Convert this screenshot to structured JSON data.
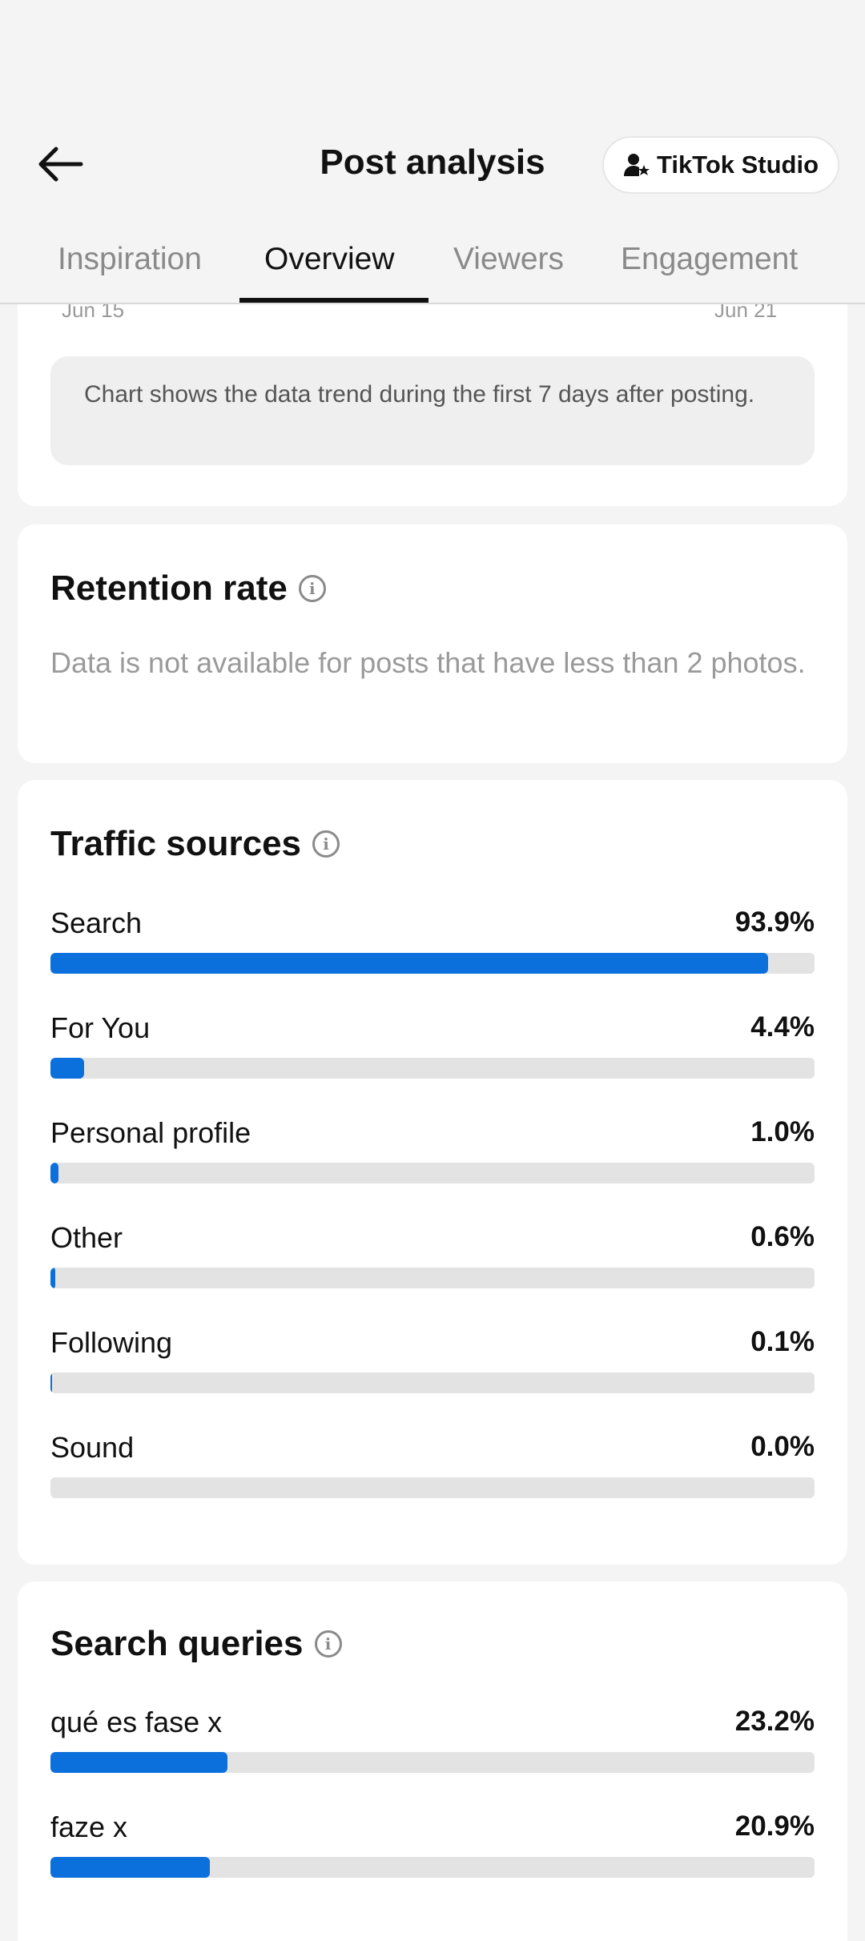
{
  "header": {
    "title": "Post analysis",
    "studio_button": "TikTok Studio"
  },
  "tabs": [
    {
      "label": "Inspiration",
      "active": false
    },
    {
      "label": "Overview",
      "active": true
    },
    {
      "label": "Viewers",
      "active": false
    },
    {
      "label": "Engagement",
      "active": false
    }
  ],
  "chart_footer": {
    "start_date": "Jun 15",
    "end_date": "Jun 21",
    "note": "Chart shows the data trend during the first 7 days after posting."
  },
  "retention": {
    "title": "Retention rate",
    "note": "Data is not available for posts that have less than 2 photos."
  },
  "traffic_sources": {
    "title": "Traffic sources",
    "items": [
      {
        "label": "Search",
        "value": "93.9%",
        "percent": 93.9
      },
      {
        "label": "For You",
        "value": "4.4%",
        "percent": 4.4
      },
      {
        "label": "Personal profile",
        "value": "1.0%",
        "percent": 1.0
      },
      {
        "label": "Other",
        "value": "0.6%",
        "percent": 0.6
      },
      {
        "label": "Following",
        "value": "0.1%",
        "percent": 0.1
      },
      {
        "label": "Sound",
        "value": "0.0%",
        "percent": 0.0
      }
    ]
  },
  "search_queries": {
    "title": "Search queries",
    "items": [
      {
        "label": "qué es fase x",
        "value": "23.2%",
        "percent": 23.2
      },
      {
        "label": "faze x",
        "value": "20.9%",
        "percent": 20.9
      }
    ]
  },
  "colors": {
    "accent": "#0b6fdc",
    "track": "#e3e3e3",
    "background": "#f4f4f4"
  }
}
